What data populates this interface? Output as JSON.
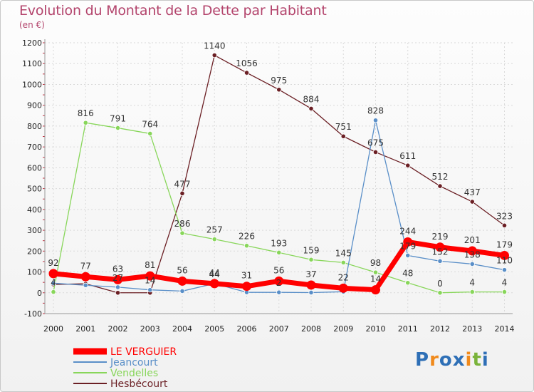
{
  "header": {
    "title": "Evolution du Montant de la Dette par Habitant",
    "subtitle": "(en €)"
  },
  "logo": {
    "text": "Proxiti",
    "colors": [
      "#2e6fb6",
      "#f08a1c",
      "#2e6fb6",
      "#2e6fb6",
      "#f08a1c",
      "#7ab33a",
      "#2e6fb6"
    ]
  },
  "chart_data": {
    "type": "line",
    "title": "Evolution du Montant de la Dette par Habitant",
    "subtitle": "(en €)",
    "xlabel": "",
    "ylabel": "",
    "x": [
      "2000",
      "2001",
      "2002",
      "2003",
      "2004",
      "2005",
      "2006",
      "2007",
      "2008",
      "2009",
      "2010",
      "2011",
      "2012",
      "2013",
      "2014"
    ],
    "ylim": [
      -100,
      1200
    ],
    "yticks": [
      -100,
      0,
      100,
      200,
      300,
      400,
      500,
      600,
      700,
      800,
      900,
      1000,
      1100,
      1200
    ],
    "grid": true,
    "legend_position": "bottom-left",
    "series": [
      {
        "name": "Hesbécourt",
        "color": "#6b1f24",
        "values": [
          40,
          43,
          0,
          0,
          477,
          1140,
          1056,
          975,
          884,
          751,
          675,
          611,
          512,
          437,
          323
        ],
        "labels": [
          "",
          "",
          "",
          "",
          "477",
          "1140",
          "1056",
          "975",
          "884",
          "751",
          "675",
          "611",
          "512",
          "437",
          "323"
        ]
      },
      {
        "name": "Vendelles",
        "color": "#88d65a",
        "values": [
          4,
          816,
          791,
          764,
          286,
          257,
          226,
          193,
          159,
          145,
          98,
          48,
          0,
          4,
          4
        ],
        "labels": [
          "4",
          "816",
          "791",
          "764",
          "286",
          "257",
          "226",
          "193",
          "159",
          "145",
          "98",
          "48",
          "0",
          "4",
          "4"
        ]
      },
      {
        "name": "Jeancourt",
        "color": "#5a8fc8",
        "values": [
          46,
          36,
          27,
          14,
          8,
          44,
          2,
          2,
          1,
          5,
          828,
          179,
          152,
          138,
          110
        ],
        "labels": [
          "",
          "",
          "27",
          "14",
          "",
          "44",
          "",
          "2",
          "",
          "",
          "828",
          "179",
          "152",
          "138",
          "110"
        ]
      },
      {
        "name": "LE VERGUIER",
        "color": "#ff0000",
        "values": [
          92,
          77,
          63,
          81,
          56,
          44,
          31,
          56,
          37,
          22,
          14,
          244,
          219,
          201,
          179
        ],
        "labels": [
          "92",
          "77",
          "63",
          "81",
          "56",
          "44",
          "31",
          "56",
          "37",
          "22",
          "14",
          "244",
          "219",
          "201",
          "179"
        ]
      }
    ],
    "legend_order": [
      "LE VERGUIER",
      "Jeancourt",
      "Vendelles",
      "Hesbécourt"
    ]
  }
}
